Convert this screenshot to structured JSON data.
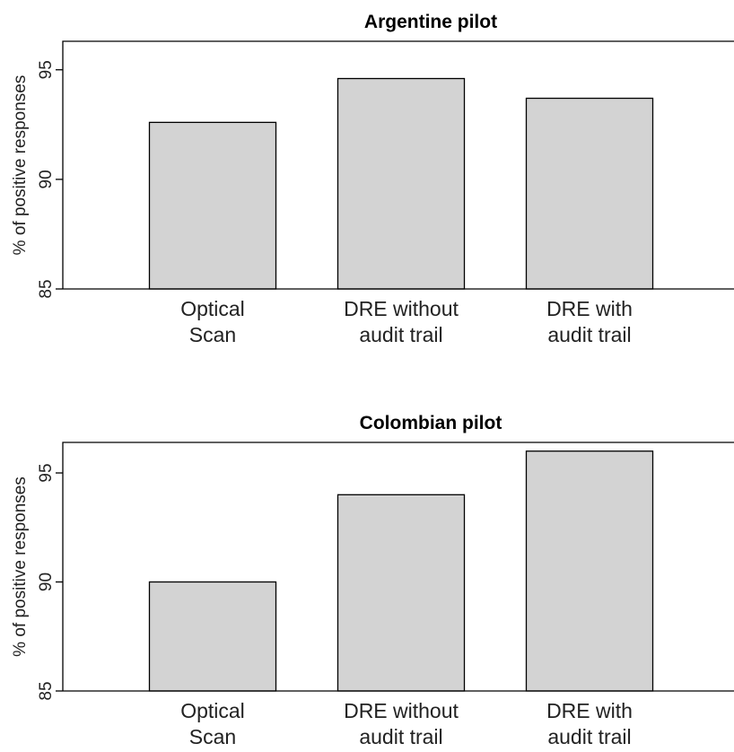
{
  "chart_data": [
    {
      "type": "bar",
      "title": "Argentine pilot",
      "ylabel": "% of positive responses",
      "xlabel": "",
      "categories": [
        [
          "Optical",
          "Scan"
        ],
        [
          "DRE without",
          "audit trail"
        ],
        [
          "DRE with",
          "audit trail"
        ]
      ],
      "values": [
        92.6,
        94.6,
        93.7
      ],
      "ylim": [
        85,
        96.3
      ],
      "yticks": [
        85,
        90,
        95
      ],
      "grid": false,
      "bar_color": "#d3d3d3"
    },
    {
      "type": "bar",
      "title": "Colombian pilot",
      "ylabel": "% of positive responses",
      "xlabel": "",
      "categories": [
        [
          "Optical",
          "Scan"
        ],
        [
          "DRE without",
          "audit trail"
        ],
        [
          "DRE with",
          "audit trail"
        ]
      ],
      "values": [
        90.0,
        94.0,
        96.0
      ],
      "ylim": [
        85,
        96.4
      ],
      "yticks": [
        85,
        90,
        95
      ],
      "grid": false,
      "bar_color": "#d3d3d3"
    }
  ]
}
